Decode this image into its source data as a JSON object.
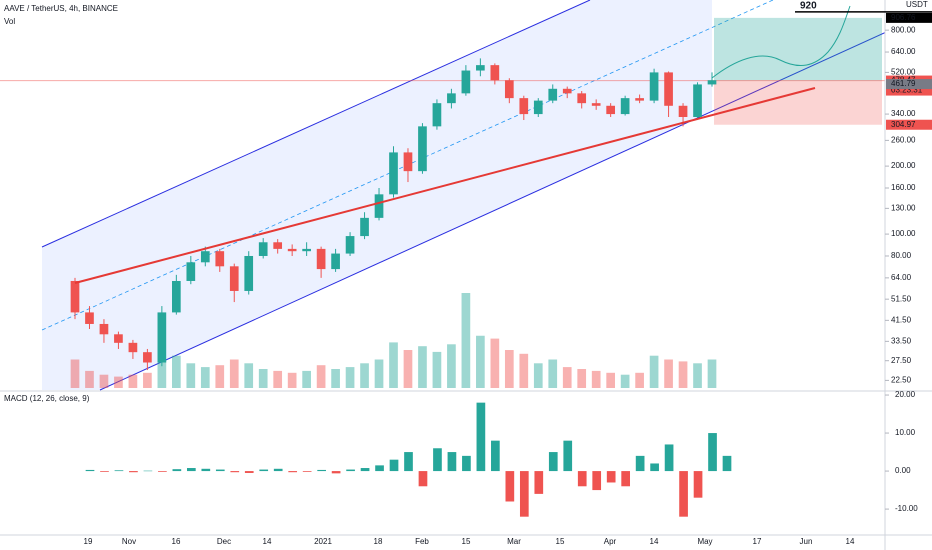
{
  "chart_data": {
    "type": "candlestick",
    "title": "AAVE / TetherUS, 4h, BINANCE",
    "volume_label": "Vol",
    "currency": "USDT",
    "log_scale": true,
    "grid": false,
    "up_color": "#26a69a",
    "down_color": "#ef5350",
    "ylim": [
      20.4,
      1088
    ],
    "yticks": [
      {
        "value": 22.5,
        "label": "22.50"
      },
      {
        "value": 27.5,
        "label": "27.50"
      },
      {
        "value": 33.5,
        "label": "33.50"
      },
      {
        "value": 41.5,
        "label": "41.50"
      },
      {
        "value": 51.5,
        "label": "51.50"
      },
      {
        "value": 64,
        "label": "64.00"
      },
      {
        "value": 80,
        "label": "80.00"
      },
      {
        "value": 100,
        "label": "100.00"
      },
      {
        "value": 130,
        "label": "130.00"
      },
      {
        "value": 160,
        "label": "160.00"
      },
      {
        "value": 200,
        "label": "200.00"
      },
      {
        "value": 260,
        "label": "260.00"
      },
      {
        "value": 340,
        "label": "340.00"
      },
      {
        "value": 520,
        "label": "520.00"
      },
      {
        "value": 640,
        "label": "640.00"
      },
      {
        "value": 800,
        "label": "800.00"
      }
    ],
    "open": [
      62,
      45,
      40,
      36,
      33,
      30,
      27,
      45,
      62,
      75,
      84,
      72,
      56,
      80,
      92,
      86,
      84,
      86,
      70,
      82,
      98,
      118,
      150,
      230,
      190,
      300,
      380,
      420,
      530,
      560,
      480,
      400,
      340,
      390,
      440,
      420,
      380,
      370,
      340,
      400,
      390,
      520,
      370,
      330,
      460
    ],
    "high": [
      64,
      48,
      42,
      37,
      34,
      31,
      48,
      66,
      80,
      88,
      86,
      74,
      84,
      96,
      95,
      90,
      92,
      88,
      86,
      102,
      125,
      160,
      245,
      240,
      310,
      395,
      440,
      560,
      600,
      570,
      490,
      410,
      400,
      460,
      450,
      430,
      395,
      380,
      410,
      415,
      540,
      525,
      380,
      470,
      520
    ],
    "low": [
      42,
      38,
      33,
      31,
      28,
      25,
      26,
      44,
      60,
      72,
      68,
      50,
      54,
      78,
      82,
      80,
      80,
      64,
      68,
      80,
      95,
      115,
      145,
      170,
      185,
      290,
      360,
      410,
      500,
      460,
      380,
      320,
      330,
      380,
      400,
      360,
      355,
      330,
      335,
      380,
      380,
      330,
      300,
      320,
      450
    ],
    "close": [
      45,
      40,
      36,
      33,
      30,
      27,
      45,
      62,
      75,
      84,
      72,
      56,
      80,
      92,
      86,
      84,
      86,
      70,
      82,
      98,
      118,
      150,
      230,
      190,
      300,
      380,
      420,
      530,
      560,
      480,
      400,
      340,
      390,
      440,
      420,
      380,
      370,
      340,
      400,
      390,
      520,
      370,
      330,
      460,
      480
    ],
    "volume": [
      30,
      18,
      14,
      12,
      14,
      16,
      30,
      34,
      26,
      22,
      24,
      30,
      26,
      20,
      18,
      16,
      18,
      24,
      20,
      22,
      26,
      30,
      48,
      40,
      44,
      38,
      46,
      100,
      55,
      52,
      40,
      36,
      26,
      30,
      22,
      20,
      18,
      16,
      14,
      16,
      34,
      30,
      28,
      26,
      30
    ],
    "price_labels": [
      {
        "value": 906.76,
        "label": "906.76",
        "color": "#000000"
      },
      {
        "value": 478.47,
        "label": "478.47",
        "color": "#ef5350"
      },
      {
        "value": 461.79,
        "label": "461.79",
        "color": "#787b86"
      },
      {
        "value": 304.97,
        "label": "304.97",
        "color": "#ef5350"
      }
    ],
    "countdown": "03:23:31",
    "target_label": "920",
    "macd": {
      "title": "MACD (12, 26, close, 9)",
      "ylim": [
        -15.5,
        20.8
      ],
      "yticks": [
        {
          "value": 20,
          "label": "20.00"
        },
        {
          "value": 10,
          "label": "10.00"
        },
        {
          "value": 0,
          "label": "0.00"
        },
        {
          "value": -10,
          "label": "-10.00"
        }
      ],
      "values": [
        0.3,
        -0.2,
        0.2,
        -0.3,
        0.1,
        -0.2,
        0.5,
        0.8,
        0.6,
        0.4,
        -0.3,
        -0.5,
        0.4,
        0.6,
        -0.3,
        -0.2,
        0.3,
        -0.6,
        0.4,
        0.8,
        1.5,
        3,
        5,
        -4,
        6,
        5,
        4,
        18,
        8,
        -8,
        -12,
        -6,
        5,
        8,
        -4,
        -5,
        -3,
        -4,
        4,
        2,
        7,
        -12,
        -7,
        10,
        4
      ]
    },
    "time_labels": [
      "19",
      "Nov",
      "16",
      "Dec",
      "14",
      "2021",
      "18",
      "Feb",
      "15",
      "Mar",
      "15",
      "Apr",
      "14",
      "May",
      "17",
      "Jun",
      "14"
    ]
  }
}
